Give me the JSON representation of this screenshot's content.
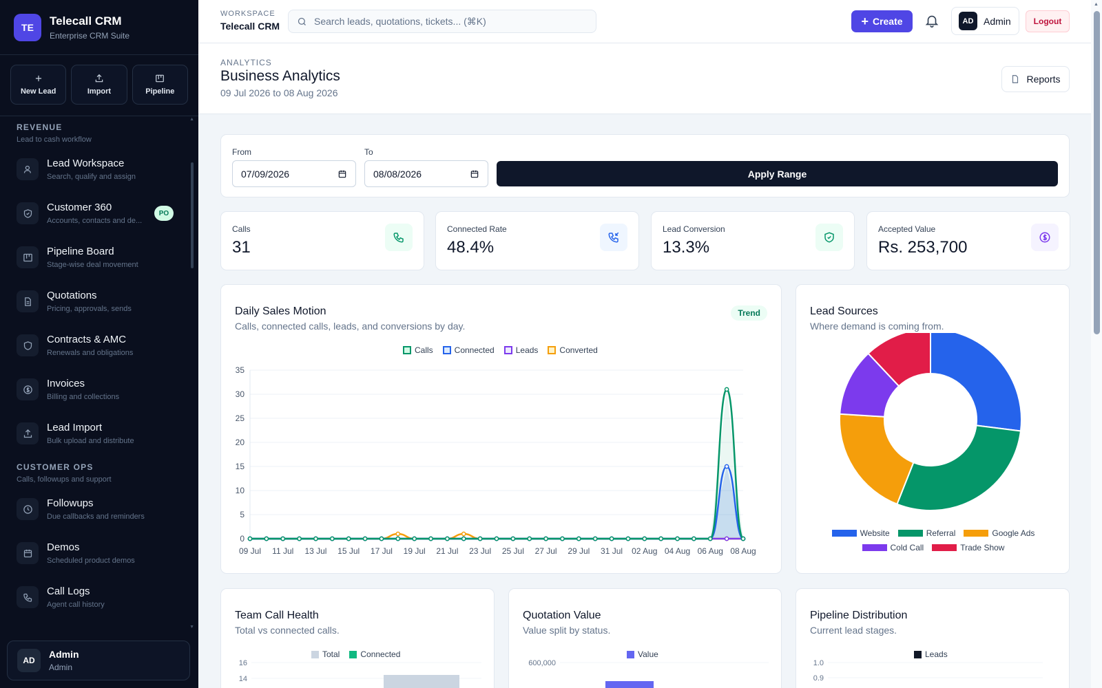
{
  "brand": {
    "initials": "TE",
    "title": "Telecall CRM",
    "subtitle": "Enterprise CRM Suite"
  },
  "quick_actions": [
    {
      "label": "New Lead",
      "icon": "plus-icon"
    },
    {
      "label": "Import",
      "icon": "upload-icon"
    },
    {
      "label": "Pipeline",
      "icon": "kanban-icon"
    }
  ],
  "sidebar": {
    "sections": [
      {
        "title": "REVENUE",
        "subtitle": "Lead to cash workflow",
        "items": [
          {
            "label": "Lead Workspace",
            "sub": "Search, qualify and assign",
            "icon": "user-search-icon"
          },
          {
            "label": "Customer 360",
            "sub": "Accounts, contacts and de...",
            "icon": "shield-icon",
            "badge": "PO"
          },
          {
            "label": "Pipeline Board",
            "sub": "Stage-wise deal movement",
            "icon": "kanban-icon"
          },
          {
            "label": "Quotations",
            "sub": "Pricing, approvals, sends",
            "icon": "document-icon"
          },
          {
            "label": "Contracts & AMC",
            "sub": "Renewals and obligations",
            "icon": "shield-icon"
          },
          {
            "label": "Invoices",
            "sub": "Billing and collections",
            "icon": "dollar-icon"
          },
          {
            "label": "Lead Import",
            "sub": "Bulk upload and distribute",
            "icon": "upload-icon"
          }
        ]
      },
      {
        "title": "CUSTOMER OPS",
        "subtitle": "Calls, followups and support",
        "items": [
          {
            "label": "Followups",
            "sub": "Due callbacks and reminders",
            "icon": "clock-icon"
          },
          {
            "label": "Demos",
            "sub": "Scheduled product demos",
            "icon": "calendar-icon"
          },
          {
            "label": "Call Logs",
            "sub": "Agent call history",
            "icon": "phone-icon"
          }
        ]
      }
    ],
    "user": {
      "initials": "AD",
      "name": "Admin",
      "role": "Admin"
    }
  },
  "header": {
    "workspace_label": "WORKSPACE",
    "workspace_name": "Telecall CRM",
    "search_placeholder": "Search leads, quotations, tickets... (⌘K)",
    "create_label": "Create",
    "user_initials": "AD",
    "user_name": "Admin",
    "logout_label": "Logout"
  },
  "page": {
    "eyebrow": "ANALYTICS",
    "title": "Business Analytics",
    "range": "09 Jul 2026 to 08 Aug 2026",
    "reports_label": "Reports"
  },
  "filter": {
    "from_label": "From",
    "from_value": "07/09/2026",
    "to_label": "To",
    "to_value": "08/08/2026",
    "apply_label": "Apply Range"
  },
  "kpis": [
    {
      "label": "Calls",
      "value": "31",
      "icon": "phone-icon",
      "color": "#059669",
      "bg": "#ecfdf5"
    },
    {
      "label": "Connected Rate",
      "value": "48.4%",
      "icon": "phone-incoming-icon",
      "color": "#2563eb",
      "bg": "#eff6ff"
    },
    {
      "label": "Lead Conversion",
      "value": "13.3%",
      "icon": "shield-check-icon",
      "color": "#059669",
      "bg": "#ecfdf5"
    },
    {
      "label": "Accepted Value",
      "value": "Rs. 253,700",
      "icon": "dollar-icon",
      "color": "#7c3aed",
      "bg": "#f5f3ff"
    }
  ],
  "cards": {
    "daily": {
      "title": "Daily Sales Motion",
      "subtitle": "Calls, connected calls, leads, and conversions by day.",
      "badge": "Trend"
    },
    "sources": {
      "title": "Lead Sources",
      "subtitle": "Where demand is coming from."
    },
    "team": {
      "title": "Team Call Health",
      "subtitle": "Total vs connected calls."
    },
    "quotation": {
      "title": "Quotation Value",
      "subtitle": "Value split by status."
    },
    "pipeline": {
      "title": "Pipeline Distribution",
      "subtitle": "Current lead stages."
    }
  },
  "chart_data": [
    {
      "type": "line",
      "title": "Daily Sales Motion",
      "x": [
        "09 Jul",
        "10 Jul",
        "11 Jul",
        "12 Jul",
        "13 Jul",
        "14 Jul",
        "15 Jul",
        "16 Jul",
        "17 Jul",
        "18 Jul",
        "19 Jul",
        "20 Jul",
        "21 Jul",
        "22 Jul",
        "23 Jul",
        "24 Jul",
        "25 Jul",
        "26 Jul",
        "27 Jul",
        "28 Jul",
        "29 Jul",
        "30 Jul",
        "31 Jul",
        "01 Aug",
        "02 Aug",
        "03 Aug",
        "04 Aug",
        "05 Aug",
        "06 Aug",
        "07 Aug",
        "08 Aug"
      ],
      "x_tick_labels": [
        "09 Jul",
        "11 Jul",
        "13 Jul",
        "15 Jul",
        "17 Jul",
        "19 Jul",
        "21 Jul",
        "23 Jul",
        "25 Jul",
        "27 Jul",
        "29 Jul",
        "31 Jul",
        "02 Aug",
        "04 Aug",
        "06 Aug",
        "08 Aug"
      ],
      "ylim": [
        0,
        35
      ],
      "y_ticks": [
        0,
        5,
        10,
        15,
        20,
        25,
        30,
        35
      ],
      "legend": "top",
      "series": [
        {
          "name": "Calls",
          "color": "#059669",
          "values": [
            0,
            0,
            0,
            0,
            0,
            0,
            0,
            0,
            0,
            0,
            0,
            0,
            0,
            0,
            0,
            0,
            0,
            0,
            0,
            0,
            0,
            0,
            0,
            0,
            0,
            0,
            0,
            0,
            0,
            31,
            0
          ]
        },
        {
          "name": "Connected",
          "color": "#2563eb",
          "values": [
            0,
            0,
            0,
            0,
            0,
            0,
            0,
            0,
            0,
            0,
            0,
            0,
            0,
            0,
            0,
            0,
            0,
            0,
            0,
            0,
            0,
            0,
            0,
            0,
            0,
            0,
            0,
            0,
            0,
            15,
            0
          ]
        },
        {
          "name": "Leads",
          "color": "#7c3aed",
          "values": [
            0,
            0,
            0,
            0,
            0,
            0,
            0,
            0,
            0,
            0,
            0,
            0,
            0,
            0,
            0,
            0,
            0,
            0,
            0,
            0,
            0,
            0,
            0,
            0,
            0,
            0,
            0,
            0,
            0,
            0,
            0
          ]
        },
        {
          "name": "Converted",
          "color": "#f59e0b",
          "values": [
            0,
            0,
            0,
            0,
            0,
            0,
            0,
            0,
            0,
            1,
            0,
            0,
            0,
            1,
            0,
            0,
            0,
            0,
            0,
            0,
            0,
            0,
            0,
            0,
            0,
            0,
            0,
            0,
            0,
            0,
            0
          ]
        }
      ]
    },
    {
      "type": "pie",
      "title": "Lead Sources",
      "legend": "bottom",
      "categories": [
        "Website",
        "Referral",
        "Google Ads",
        "Cold Call",
        "Trade Show"
      ],
      "colors": [
        "#2563eb",
        "#059669",
        "#f59e0b",
        "#7c3aed",
        "#e11d48"
      ],
      "values": [
        27,
        29,
        20,
        12,
        12
      ]
    },
    {
      "type": "bar",
      "title": "Team Call Health",
      "legend": "top",
      "series": [
        {
          "name": "Total",
          "color": "#cbd5e1"
        },
        {
          "name": "Connected",
          "color": "#10b981"
        }
      ],
      "y_ticks": [
        14,
        16
      ]
    },
    {
      "type": "bar",
      "title": "Quotation Value",
      "legend": "top",
      "series": [
        {
          "name": "Value",
          "color": "#6366f1"
        }
      ],
      "y_ticks": [
        600000
      ],
      "y_tick_labels": [
        "600,000"
      ]
    },
    {
      "type": "bar",
      "title": "Pipeline Distribution",
      "legend": "top",
      "series": [
        {
          "name": "Leads",
          "color": "#111827"
        }
      ],
      "y_ticks": [
        0.9,
        1.0
      ],
      "y_tick_labels": [
        "0.9",
        "1.0"
      ]
    }
  ]
}
